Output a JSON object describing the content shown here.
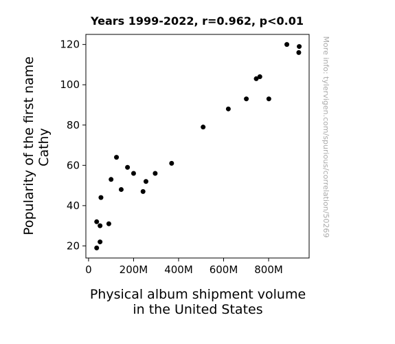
{
  "chart_data": {
    "type": "scatter",
    "title": "Years 1999-2022, r=0.962, p<0.01",
    "xlabel_lines": [
      "Physical album shipment volume",
      "in the United States"
    ],
    "ylabel_lines": [
      "Popularity of the first name",
      "Cathy"
    ],
    "xlim": [
      -12,
      980
    ],
    "ylim": [
      14,
      125
    ],
    "x_ticks": [
      {
        "value": 0,
        "label": "0"
      },
      {
        "value": 200,
        "label": "200M"
      },
      {
        "value": 400,
        "label": "400M"
      },
      {
        "value": 600,
        "label": "600M"
      },
      {
        "value": 800,
        "label": "800M"
      }
    ],
    "y_ticks": [
      {
        "value": 20,
        "label": "20"
      },
      {
        "value": 40,
        "label": "40"
      },
      {
        "value": 60,
        "label": "60"
      },
      {
        "value": 80,
        "label": "80"
      },
      {
        "value": 100,
        "label": "100"
      },
      {
        "value": 120,
        "label": "120"
      }
    ],
    "points": [
      {
        "x": 881,
        "y": 120
      },
      {
        "x": 936,
        "y": 119
      },
      {
        "x": 934,
        "y": 116
      },
      {
        "x": 761,
        "y": 104
      },
      {
        "x": 745,
        "y": 103
      },
      {
        "x": 801,
        "y": 93
      },
      {
        "x": 701,
        "y": 93
      },
      {
        "x": 621,
        "y": 88
      },
      {
        "x": 509,
        "y": 79
      },
      {
        "x": 369,
        "y": 61
      },
      {
        "x": 124,
        "y": 64
      },
      {
        "x": 173,
        "y": 59
      },
      {
        "x": 200,
        "y": 56
      },
      {
        "x": 296,
        "y": 56
      },
      {
        "x": 100,
        "y": 53
      },
      {
        "x": 255,
        "y": 52
      },
      {
        "x": 145,
        "y": 48
      },
      {
        "x": 242,
        "y": 47
      },
      {
        "x": 55,
        "y": 44
      },
      {
        "x": 36,
        "y": 32
      },
      {
        "x": 90,
        "y": 31
      },
      {
        "x": 51,
        "y": 30
      },
      {
        "x": 51,
        "y": 22
      },
      {
        "x": 36,
        "y": 19
      }
    ],
    "grid": false,
    "marker_color": "#000000"
  },
  "side_note": "More info: tylervigen.com/spurious/correlation/50269"
}
